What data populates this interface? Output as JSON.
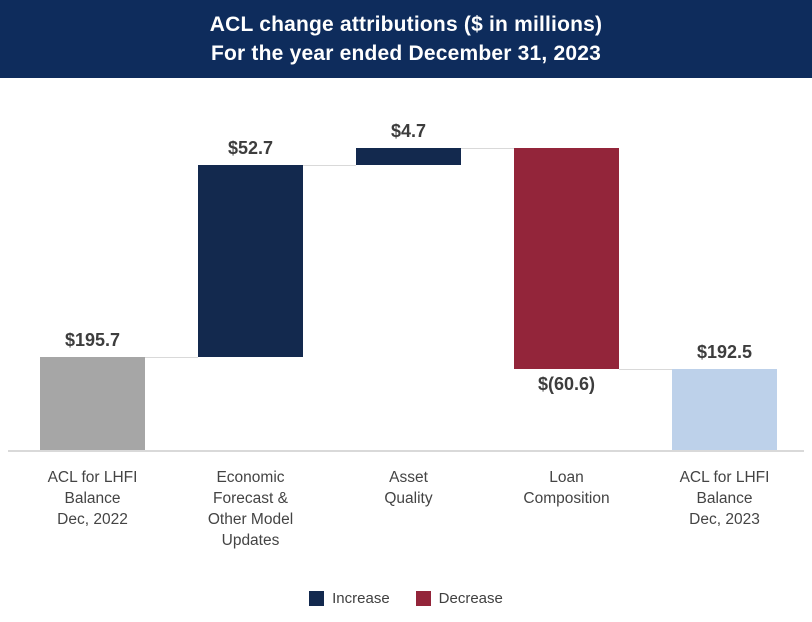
{
  "header": {
    "title_line1": "ACL change attributions ($ in millions)",
    "title_line2": "For the year ended December 31, 2023",
    "text_color": "#ffffff"
  },
  "chart_data": {
    "type": "bar",
    "subtype": "waterfall",
    "title": "ACL change attributions ($ in millions)",
    "subtitle": "For the year ended December 31, 2023",
    "unit": "$ in millions",
    "bars": [
      {
        "category": "ACL for LHFI Balance Dec, 2022",
        "label_lines": [
          "ACL for LHFI",
          "Balance",
          "Dec, 2022"
        ],
        "value": 195.7,
        "display_value": "$195.7",
        "kind": "total_start"
      },
      {
        "category": "Economic Forecast & Other Model Updates",
        "label_lines": [
          "Economic",
          "Forecast &",
          "Other Model",
          "Updates"
        ],
        "value": 52.7,
        "display_value": "$52.7",
        "kind": "increase"
      },
      {
        "category": "Asset Quality",
        "label_lines": [
          "Asset",
          "Quality"
        ],
        "value": 4.7,
        "display_value": "$4.7",
        "kind": "increase"
      },
      {
        "category": "Loan Composition",
        "label_lines": [
          "Loan",
          "Composition"
        ],
        "value": -60.6,
        "display_value": "$(60.6)",
        "kind": "decrease"
      },
      {
        "category": "ACL for LHFI Balance Dec, 2023",
        "label_lines": [
          "ACL for LHFI",
          "Balance",
          "Dec, 2023"
        ],
        "value": 192.5,
        "display_value": "$192.5",
        "kind": "total_end"
      }
    ],
    "cumulative": [
      195.7,
      248.4,
      253.1,
      192.5,
      192.5
    ],
    "legend_entries": [
      "Increase",
      "Decrease"
    ],
    "legend_position": "bottom",
    "grid": false,
    "value_axis_visible": false
  },
  "legend": {
    "items": [
      {
        "label": "Increase",
        "color": "#13294e"
      },
      {
        "label": "Decrease",
        "color": "#93253a"
      }
    ]
  },
  "colors": {
    "header_bg": "#0e2c5c",
    "increase": "#13294e",
    "decrease": "#93253a",
    "total_start": "#a6a6a6",
    "total_end": "#bdd1ea",
    "connector": "#d9d9d9",
    "baseline": "#d9d9d9",
    "value_label": "#3d3d3d",
    "category_label": "#444444",
    "legend_text": "#404040",
    "background": "#ffffff"
  }
}
